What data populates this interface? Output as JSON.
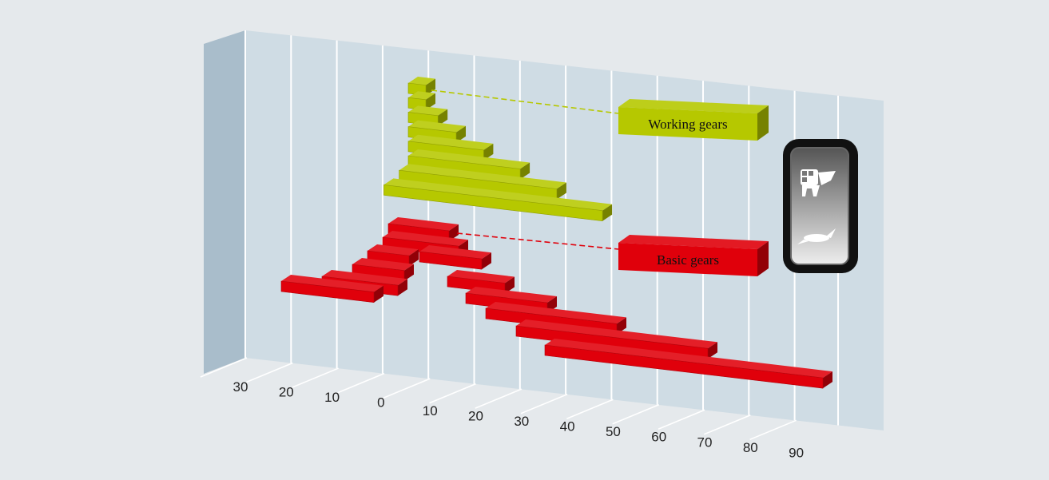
{
  "chart_data": {
    "type": "bar",
    "orientation": "horizontal",
    "style": "3d",
    "tick_labels": [
      "30",
      "20",
      "10",
      "0",
      "10",
      "20",
      "30",
      "40",
      "50",
      "60",
      "70",
      "80",
      "90"
    ],
    "xlim": [
      -30,
      90
    ],
    "grid": true,
    "legend_placement": "right",
    "series": [
      {
        "name": "Working gears",
        "color": "#b6c800",
        "bars": [
          {
            "start": 0,
            "end": 0
          },
          {
            "start": 0,
            "end": 0
          },
          {
            "start": 0,
            "end": 3
          },
          {
            "start": 0,
            "end": 7
          },
          {
            "start": 0,
            "end": 13
          },
          {
            "start": 0,
            "end": 21
          },
          {
            "start": -2,
            "end": 29
          },
          {
            "start": -5,
            "end": 39
          }
        ]
      },
      {
        "name": "Basic gears",
        "color": "#e0000b",
        "bars": [
          {
            "start": 0,
            "end": 8
          },
          {
            "start": -1,
            "end": 15
          },
          {
            "start": -4,
            "end": 5
          },
          {
            "start": -7,
            "end": 3
          },
          {
            "start": -14,
            "end": 2
          },
          {
            "start": -23,
            "end": 0
          },
          {
            "start": 0,
            "end": 19
          },
          {
            "start": 4,
            "end": 21
          },
          {
            "start": 6,
            "end": 28
          },
          {
            "start": 8,
            "end": 44
          },
          {
            "start": 10,
            "end": 63
          },
          {
            "start": 12,
            "end": 84
          }
        ]
      }
    ]
  },
  "icon": {
    "name": "gear-mode-switch-icon"
  },
  "colors": {
    "background": "#e5e9ec",
    "wall": "#cfdce4",
    "side_wall": "#a9bdcb",
    "grid": "#ffffff"
  }
}
